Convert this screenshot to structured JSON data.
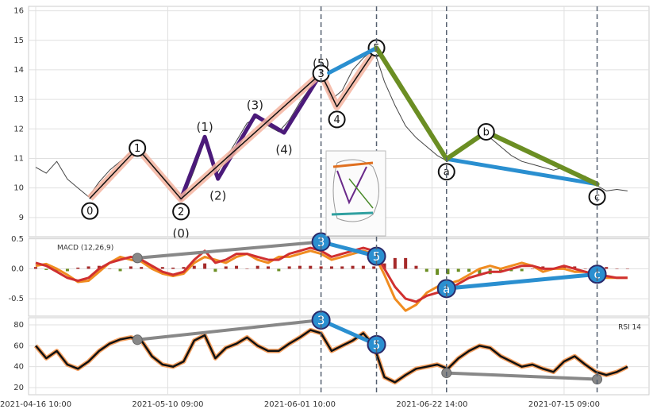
{
  "chart_data": [
    {
      "type": "line",
      "xlim": [
        -5.4,
        464.3
      ],
      "ylim": [
        8.35,
        16.15
      ],
      "yticks": [
        9,
        10,
        11,
        12,
        13,
        14,
        15,
        16
      ],
      "grid": true,
      "x": [
        0,
        8,
        16,
        24,
        32,
        40,
        48,
        56,
        64,
        72,
        80,
        88,
        96,
        104,
        112,
        120,
        128,
        136,
        144,
        152,
        160,
        168,
        176,
        184,
        192,
        200,
        208,
        216,
        224,
        232,
        240,
        248,
        256,
        264,
        272,
        280,
        288,
        296,
        304,
        312,
        320,
        328,
        336,
        344,
        352,
        360,
        368,
        376,
        384,
        392,
        400,
        408,
        416,
        424,
        432,
        440,
        448
      ],
      "series": [
        {
          "color": "#444444",
          "width": 1,
          "values": [
            10.7,
            10.5,
            10.9,
            10.3,
            10.0,
            9.7,
            10.2,
            10.6,
            10.9,
            11.2,
            11.3,
            10.8,
            10.4,
            10.0,
            9.7,
            10.6,
            11.6,
            10.4,
            11.0,
            11.6,
            12.2,
            12.4,
            12.1,
            11.9,
            12.3,
            12.9,
            13.4,
            13.8,
            13.0,
            13.3,
            14.0,
            14.4,
            14.7,
            13.6,
            12.8,
            12.1,
            11.7,
            11.4,
            11.1,
            10.9,
            11.3,
            11.5,
            11.8,
            11.7,
            11.4,
            11.1,
            10.9,
            10.8,
            10.7,
            10.6,
            10.7,
            10.5,
            10.4,
            10.1,
            9.9,
            9.95,
            9.9
          ]
        }
      ],
      "waves": [
        {
          "color": "#4b1a7a",
          "width": 5,
          "label_style": "plain",
          "points": [
            {
              "x": 110,
              "y": 9.63,
              "label": "(0)"
            },
            {
              "x": 128,
              "y": 11.73,
              "label": "(1)"
            },
            {
              "x": 138,
              "y": 10.31,
              "label": "(2)"
            },
            {
              "x": 166,
              "y": 12.46,
              "label": "(3)"
            },
            {
              "x": 188,
              "y": 11.87,
              "label": "(4)"
            },
            {
              "x": 216,
              "y": 13.88,
              "label": "(5)"
            }
          ]
        },
        {
          "color": "#111111",
          "glow": "#f4b4a0",
          "width": 1.5,
          "label_style": "circle",
          "points": [
            {
              "x": 41,
              "y": 9.65,
              "label": "0"
            },
            {
              "x": 77,
              "y": 11.35,
              "label": "1"
            },
            {
              "x": 110,
              "y": 9.63,
              "label": "2"
            },
            {
              "x": 216,
              "y": 13.88,
              "label": "3"
            },
            {
              "x": 228,
              "y": 12.75,
              "label": "4"
            },
            {
              "x": 258,
              "y": 14.74,
              "label": "5"
            }
          ]
        },
        {
          "color": "#2a8fd0",
          "width": 5,
          "points": [
            {
              "x": 222,
              "y": 13.9
            },
            {
              "x": 258,
              "y": 14.74
            }
          ]
        },
        {
          "color": "#2a8fd0",
          "width": 5,
          "points": [
            {
              "x": 311,
              "y": 10.98
            },
            {
              "x": 425,
              "y": 10.13
            }
          ]
        },
        {
          "color": "#6b8e23",
          "width": 6,
          "label_style": "circle",
          "points": [
            {
              "x": 258,
              "y": 14.74
            },
            {
              "x": 311,
              "y": 10.98,
              "label": "a"
            },
            {
              "x": 341,
              "y": 11.9,
              "label": "b"
            },
            {
              "x": 425,
              "y": 10.13,
              "label": "c"
            }
          ]
        }
      ],
      "vlines": [
        216,
        258,
        311,
        425
      ]
    },
    {
      "type": "line",
      "label": "MACD (12,26,9)",
      "label_position": "left",
      "xlim": [
        -5.4,
        464.3
      ],
      "ylim": [
        -0.79,
        0.51
      ],
      "yticks": [
        0.5,
        {
          "value": 0,
          "label": "0.0"
        },
        -0.5
      ],
      "grid": true,
      "x": [
        0,
        8,
        16,
        24,
        32,
        40,
        48,
        56,
        64,
        72,
        80,
        88,
        96,
        104,
        112,
        120,
        128,
        136,
        144,
        152,
        160,
        168,
        176,
        184,
        192,
        200,
        208,
        216,
        224,
        232,
        240,
        248,
        256,
        264,
        272,
        280,
        288,
        296,
        304,
        312,
        320,
        328,
        336,
        344,
        352,
        360,
        368,
        376,
        384,
        392,
        400,
        408,
        416,
        424,
        432,
        440,
        448
      ],
      "histogram": {
        "positive_color": "#a52a2a",
        "negative_color": "#6b8e23",
        "values": [
          0.03,
          -0.02,
          -0.04,
          -0.04,
          0.02,
          0.04,
          0.05,
          0.0,
          -0.04,
          0.04,
          0.03,
          0.04,
          0.03,
          0.02,
          0.03,
          0.05,
          0.09,
          -0.05,
          0.04,
          0.05,
          0.0,
          0.05,
          0.04,
          -0.04,
          0.04,
          0.05,
          0.05,
          0.04,
          0.04,
          0.04,
          0.05,
          0.05,
          0.04,
          0.09,
          0.18,
          0.18,
          0.05,
          -0.05,
          -0.1,
          -0.09,
          -0.05,
          -0.05,
          -0.09,
          -0.09,
          -0.04,
          -0.04,
          -0.04,
          0.0,
          0.04,
          0.0,
          0.04,
          0.04,
          0.0,
          0.0,
          0.03,
          0.0,
          0.0
        ]
      },
      "series": [
        {
          "color": "#f08c20",
          "width": 3,
          "values": [
            0.05,
            0.08,
            0.0,
            -0.1,
            -0.22,
            -0.2,
            -0.05,
            0.1,
            0.2,
            0.15,
            0.12,
            0.0,
            -0.08,
            -0.12,
            -0.08,
            0.1,
            0.2,
            0.15,
            0.1,
            0.2,
            0.25,
            0.15,
            0.1,
            0.2,
            0.2,
            0.25,
            0.3,
            0.25,
            0.15,
            0.2,
            0.25,
            0.3,
            0.25,
            -0.1,
            -0.5,
            -0.7,
            -0.6,
            -0.4,
            -0.3,
            -0.25,
            -0.2,
            -0.1,
            0.0,
            0.05,
            0.0,
            0.05,
            0.1,
            0.05,
            -0.05,
            0.0,
            0.0,
            -0.05,
            -0.05,
            -0.1,
            -0.15,
            -0.15,
            -0.15
          ]
        },
        {
          "color": "#d03030",
          "width": 3,
          "values": [
            0.1,
            0.05,
            -0.05,
            -0.15,
            -0.2,
            -0.15,
            0.0,
            0.1,
            0.15,
            0.2,
            0.15,
            0.05,
            -0.05,
            -0.1,
            -0.05,
            0.15,
            0.3,
            0.1,
            0.15,
            0.25,
            0.25,
            0.2,
            0.15,
            0.15,
            0.25,
            0.3,
            0.35,
            0.3,
            0.2,
            0.25,
            0.3,
            0.35,
            0.3,
            0.0,
            -0.3,
            -0.5,
            -0.55,
            -0.45,
            -0.4,
            -0.35,
            -0.25,
            -0.15,
            -0.1,
            -0.05,
            -0.05,
            0.0,
            0.05,
            0.05,
            0.0,
            0.0,
            0.05,
            0.0,
            -0.05,
            -0.1,
            -0.12,
            -0.15,
            -0.15
          ]
        }
      ],
      "waves": [
        {
          "color": "#888888",
          "width": 4,
          "label_style": "dot",
          "points": [
            {
              "x": 77,
              "y": 0.18
            },
            {
              "x": 216,
              "y": 0.45
            }
          ]
        },
        {
          "color": "#2a8fd0",
          "width": 5,
          "label_style": "filled",
          "points": [
            {
              "x": 216,
              "y": 0.45,
              "label": "3"
            },
            {
              "x": 258,
              "y": 0.21,
              "label": "5"
            }
          ]
        },
        {
          "color": "#2a8fd0",
          "width": 5,
          "label_style": "filled",
          "points": [
            {
              "x": 311,
              "y": -0.33,
              "label": "a"
            },
            {
              "x": 425,
              "y": -0.09,
              "label": "c"
            }
          ]
        }
      ]
    },
    {
      "type": "line",
      "label": "RSI 14",
      "label_position": "right",
      "xlim": [
        -5.4,
        464.3
      ],
      "ylim": [
        13.2,
        86.8
      ],
      "yticks": [
        20,
        40,
        60,
        80
      ],
      "grid": true,
      "xticks": [
        {
          "value": 0,
          "label": "2021-04-16 10:00"
        },
        {
          "value": 100,
          "label": "2021-05-10 09:00"
        },
        {
          "value": 200,
          "label": "2021-06-01 10:00"
        },
        {
          "value": 300,
          "label": "2021-06-22 14:00"
        },
        {
          "value": 400,
          "label": "2021-07-15 09:00"
        }
      ],
      "x": [
        0,
        8,
        16,
        24,
        32,
        40,
        48,
        56,
        64,
        72,
        80,
        88,
        96,
        104,
        112,
        120,
        128,
        136,
        144,
        152,
        160,
        168,
        176,
        184,
        192,
        200,
        208,
        216,
        224,
        232,
        240,
        248,
        256,
        264,
        272,
        280,
        288,
        296,
        304,
        312,
        320,
        328,
        336,
        344,
        352,
        360,
        368,
        376,
        384,
        392,
        400,
        408,
        416,
        424,
        432,
        440,
        448
      ],
      "series": [
        {
          "color": "#111111",
          "glow": "#f5a060",
          "width": 2.5,
          "values": [
            60,
            48,
            55,
            42,
            38,
            45,
            55,
            62,
            66,
            68,
            65,
            50,
            42,
            40,
            45,
            65,
            70,
            48,
            58,
            62,
            68,
            60,
            55,
            55,
            62,
            68,
            75,
            72,
            55,
            60,
            65,
            72,
            60,
            30,
            25,
            32,
            38,
            40,
            42,
            38,
            48,
            55,
            60,
            58,
            50,
            45,
            40,
            42,
            38,
            35,
            45,
            50,
            42,
            35,
            32,
            35,
            40
          ]
        }
      ],
      "waves": [
        {
          "color": "#888888",
          "width": 4,
          "label_style": "dot",
          "points": [
            {
              "x": 77,
              "y": 65.7
            },
            {
              "x": 216,
              "y": 84.5
            }
          ]
        },
        {
          "color": "#2a8fd0",
          "width": 5,
          "label_style": "filled",
          "points": [
            {
              "x": 216,
              "y": 84.5,
              "label": "3"
            },
            {
              "x": 258,
              "y": 61.1,
              "label": "5"
            }
          ]
        },
        {
          "color": "#888888",
          "width": 4,
          "label_style": "dot",
          "points": [
            {
              "x": 311,
              "y": 34
            },
            {
              "x": 425,
              "y": 28
            }
          ]
        }
      ]
    }
  ]
}
